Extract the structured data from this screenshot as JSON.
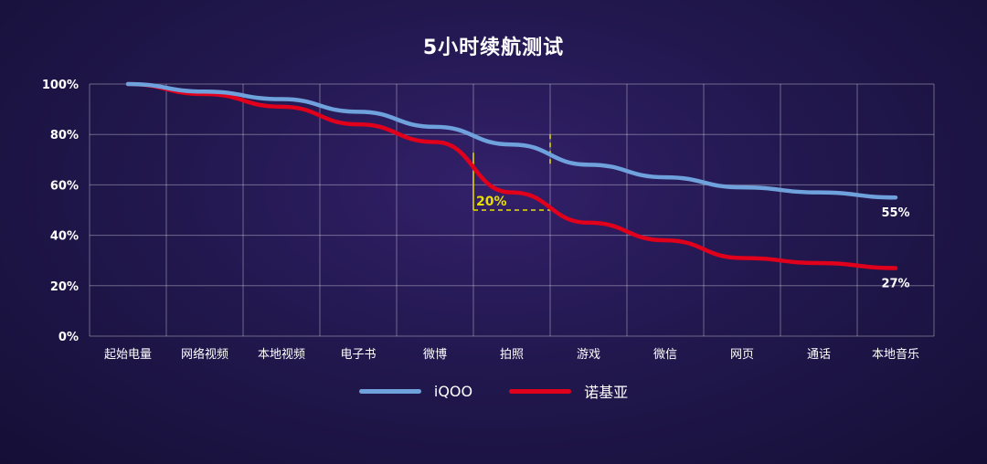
{
  "chart_data": {
    "type": "line",
    "title": "5小时续航测试",
    "xlabel": "",
    "ylabel": "",
    "categories": [
      "起始电量",
      "网络视频",
      "本地视频",
      "电子书",
      "微博",
      "拍照",
      "游戏",
      "微信",
      "网页",
      "通话",
      "本地音乐"
    ],
    "ylim": [
      0,
      100
    ],
    "yticks": [
      0,
      20,
      40,
      60,
      80,
      100
    ],
    "ytick_labels": [
      "0%",
      "20%",
      "40%",
      "60%",
      "80%",
      "100%"
    ],
    "grid": true,
    "legend_position": "bottom-center",
    "series": [
      {
        "name": "iQOO",
        "color": "#6fa2dc",
        "values": [
          100,
          97,
          94,
          89,
          83,
          76,
          68,
          63,
          59,
          57,
          55
        ],
        "end_label": "55%"
      },
      {
        "name": "诺基亚",
        "color": "#e0001c",
        "values": [
          100,
          96,
          91,
          84,
          77,
          57,
          45,
          38,
          31,
          29,
          27
        ],
        "end_label": "27%"
      }
    ],
    "annotations": [
      {
        "text": "20%",
        "color": "#e8e000",
        "x_from": "微博",
        "x_to": "拍照",
        "y_from": 50,
        "y_to": 80
      }
    ]
  }
}
